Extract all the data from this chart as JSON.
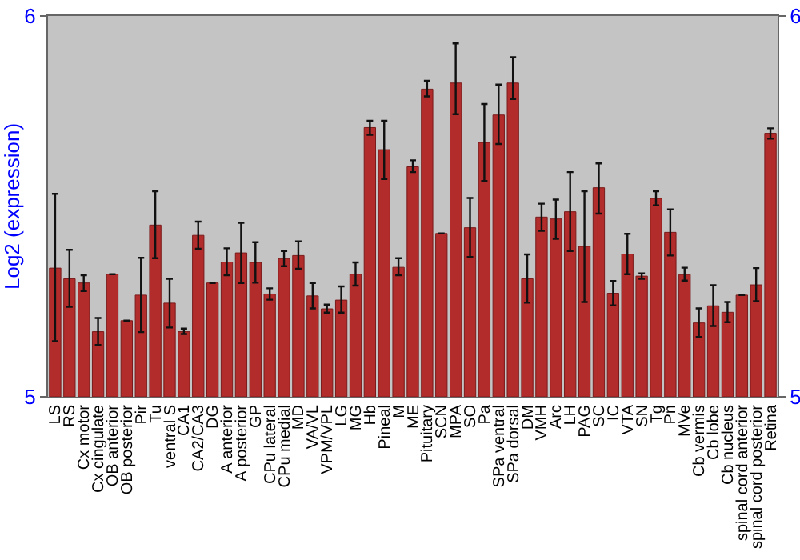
{
  "chart_data": {
    "type": "bar",
    "ylabel": "Log2 (expression)",
    "categories": [
      "LS",
      "RS",
      "Cx motor",
      "Cx cingulate",
      "OB anterior",
      "OB posterior",
      "Pir",
      "Tu",
      "ventral S",
      "CA1",
      "CA2/CA3",
      "DG",
      "A anterior",
      "A posterior",
      "GP",
      "CPu lateral",
      "CPu medial",
      "MD",
      "VA/VL",
      "VPM/VPL",
      "LG",
      "MG",
      "Hb",
      "Pineal",
      "M",
      "ME",
      "Pituitary",
      "SCN",
      "MPA",
      "SO",
      "Pa",
      "SPa ventral",
      "SPa dorsal",
      "DM",
      "VMH",
      "Arc",
      "LH",
      "PAG",
      "SC",
      "IC",
      "VTA",
      "SN",
      "Tg",
      "Pn",
      "MVe",
      "Cb vermis",
      "Cb lobe",
      "Cb nucleus",
      "spinal cord anterior",
      "spinal cord posterior",
      "Retina"
    ],
    "values": [
      5.338,
      5.31,
      5.299,
      5.171,
      5.322,
      5.2,
      5.267,
      5.451,
      5.246,
      5.171,
      5.424,
      5.299,
      5.354,
      5.378,
      5.353,
      5.27,
      5.363,
      5.371,
      5.265,
      5.231,
      5.254,
      5.322,
      5.707,
      5.649,
      5.34,
      5.604,
      5.808,
      5.429,
      5.824,
      5.444,
      5.668,
      5.74,
      5.824,
      5.31,
      5.472,
      5.467,
      5.486,
      5.395,
      5.549,
      5.272,
      5.375,
      5.317,
      5.521,
      5.432,
      5.321,
      5.194,
      5.239,
      5.222,
      5.267,
      5.294,
      5.692
    ],
    "errors": [
      [
        5.146,
        5.533
      ],
      [
        5.236,
        5.386
      ],
      [
        5.278,
        5.319
      ],
      [
        5.136,
        5.207
      ],
      null,
      null,
      [
        5.17,
        5.365
      ],
      [
        5.364,
        5.54
      ],
      [
        5.182,
        5.31
      ],
      [
        5.165,
        5.179
      ],
      [
        5.389,
        5.46
      ],
      null,
      [
        5.319,
        5.39
      ],
      [
        5.299,
        5.457
      ],
      [
        5.3,
        5.406
      ],
      [
        5.255,
        5.285
      ],
      [
        5.343,
        5.383
      ],
      [
        5.336,
        5.408
      ],
      [
        5.232,
        5.299
      ],
      [
        5.221,
        5.242
      ],
      [
        5.221,
        5.29
      ],
      [
        5.292,
        5.353
      ],
      [
        5.688,
        5.725
      ],
      [
        5.572,
        5.725
      ],
      [
        5.319,
        5.364
      ],
      [
        5.59,
        5.621
      ],
      [
        5.789,
        5.83
      ],
      null,
      [
        5.742,
        5.928
      ],
      [
        5.367,
        5.522
      ],
      [
        5.567,
        5.769
      ],
      [
        5.664,
        5.82
      ],
      [
        5.782,
        5.892
      ],
      [
        5.247,
        5.374
      ],
      [
        5.436,
        5.507
      ],
      [
        5.415,
        5.518
      ],
      [
        5.383,
        5.59
      ],
      [
        5.249,
        5.54
      ],
      [
        5.481,
        5.613
      ],
      [
        5.24,
        5.304
      ],
      [
        5.322,
        5.428
      ],
      [
        5.31,
        5.324
      ],
      [
        5.503,
        5.54
      ],
      [
        5.371,
        5.492
      ],
      [
        5.305,
        5.339
      ],
      [
        5.157,
        5.232
      ],
      [
        5.186,
        5.293
      ],
      [
        5.196,
        5.249
      ],
      null,
      [
        5.251,
        5.338
      ],
      [
        5.678,
        5.705
      ]
    ],
    "color": "#b22c2c",
    "ylim": [
      5,
      6
    ],
    "yticks": [
      5,
      6
    ],
    "y2lim": [
      5,
      6
    ],
    "y2ticks": [
      5,
      6
    ],
    "grid": false
  }
}
